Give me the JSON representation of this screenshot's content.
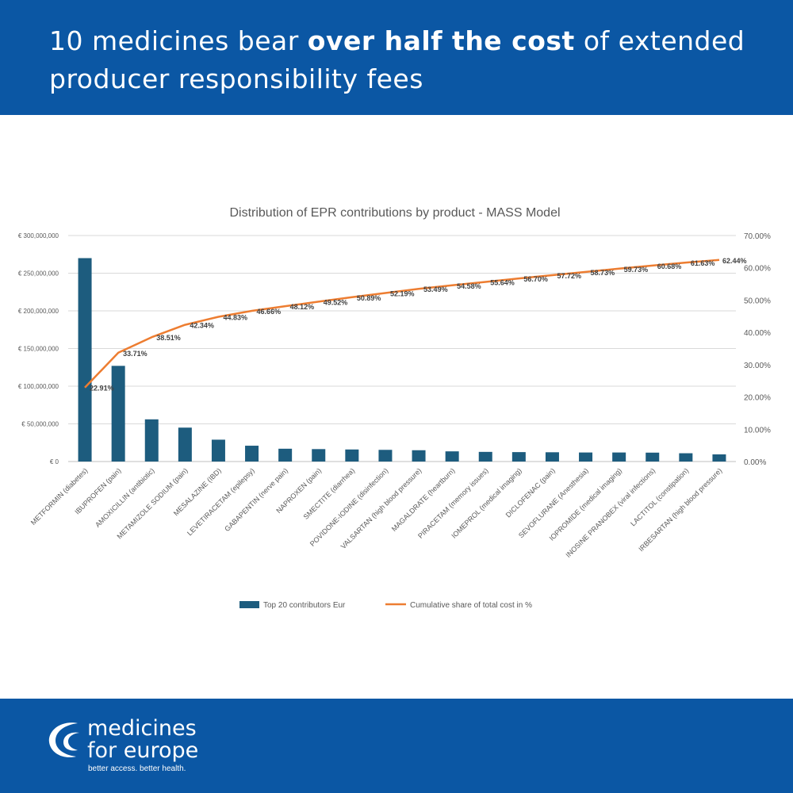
{
  "header": {
    "title_pre": "10 medicines bear ",
    "title_bold": "over half the cost",
    "title_post": " of extended producer responsibility fees"
  },
  "chart_data": {
    "type": "bar",
    "title": "Distribution of EPR contributions by product - MASS Model",
    "categories": [
      "METFORMIN (diabetes)",
      "IBUPROFEN (pain)",
      "AMOXICILLIN (antibiotic)",
      "METAMIZOLE SODIUM (pain)",
      "MESALAZINE (IBD)",
      "LEVETIRACETAM (epilepsy)",
      "GABAPENTIN (nerve pain)",
      "NAPROXEN (pain)",
      "SMECTITE (diarrhea)",
      "POVIDONE-IODINE (disinfection)",
      "VALSARTAN (high blood pressure)",
      "MAGALDRATE (heartburn)",
      "PIRACETAM (memory issues)",
      "IOMEPROL (medical imaging)",
      "DICLOFENAC (pain)",
      "SEVOFLURANE (Anesthesia)",
      "IOPROMIDE (medical imaging)",
      "INOSINE PRANOBEX (viral infections)",
      "LACTITOL (constipation)",
      "IRBESARTAN (high blood pressure)"
    ],
    "series": [
      {
        "name": "Top 20 contributors Eur",
        "type": "bar",
        "axis": "left",
        "color": "#1d5c7e",
        "values": [
          270000000,
          127000000,
          56000000,
          45000000,
          29000000,
          21000000,
          17000000,
          16500000,
          16000000,
          15500000,
          15000000,
          13500000,
          12800000,
          12500000,
          12300000,
          12000000,
          12000000,
          11800000,
          11000000,
          9500000
        ]
      },
      {
        "name": "Cumulative share of total cost in %",
        "type": "line",
        "axis": "right",
        "color": "#ed7d31",
        "values": [
          22.91,
          33.71,
          38.51,
          42.34,
          44.83,
          46.66,
          48.12,
          49.52,
          50.89,
          52.19,
          53.49,
          54.58,
          55.64,
          56.7,
          57.72,
          58.73,
          59.73,
          60.68,
          61.63,
          62.44
        ],
        "labels": [
          "22.91%",
          "33.71%",
          "38.51%",
          "42.34%",
          "44.83%",
          "46.66%",
          "48.12%",
          "49.52%",
          "50.89%",
          "52.19%",
          "53.49%",
          "54.58%",
          "55.64%",
          "56.70%",
          "57.72%",
          "58.73%",
          "59.73%",
          "60.68%",
          "61.63%",
          "62.44%"
        ]
      }
    ],
    "y_left": {
      "min": 0,
      "max": 300000000,
      "ticks": [
        0,
        50000000,
        100000000,
        150000000,
        200000000,
        250000000,
        300000000
      ],
      "tick_labels": [
        "€ 0",
        "€ 50,000,000",
        "€ 100,000,000",
        "€ 150,000,000",
        "€ 200,000,000",
        "€ 250,000,000",
        "€ 300,000,000"
      ]
    },
    "y_right": {
      "min": 0,
      "max": 70,
      "ticks": [
        0,
        10,
        20,
        30,
        40,
        50,
        60,
        70
      ],
      "tick_labels": [
        "0.00%",
        "10.00%",
        "20.00%",
        "30.00%",
        "40.00%",
        "50.00%",
        "60.00%",
        "70.00%"
      ]
    },
    "grid": true,
    "legend": "bottom-center"
  },
  "footer": {
    "brand_line1": "medicines",
    "brand_line2a": "for ",
    "brand_line2b": "europe",
    "tagline": "better access. better health."
  },
  "colors": {
    "brand_blue": "#0b57a4",
    "bar": "#1d5c7e",
    "line": "#ed7d31"
  }
}
